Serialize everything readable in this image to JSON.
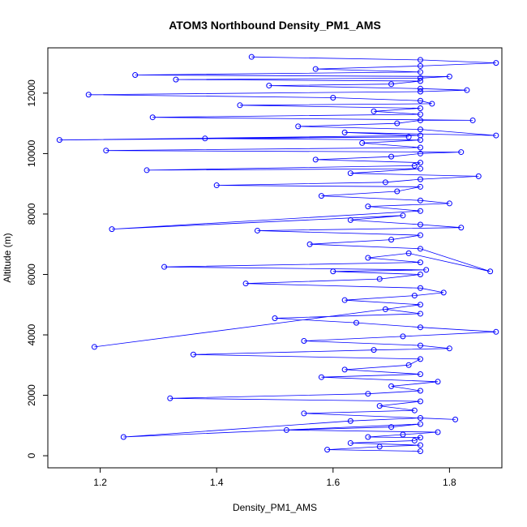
{
  "chart_data": {
    "type": "scatter",
    "title": "ATOM3 Northbound Density_PM1_AMS",
    "xlabel": "Density_PM1_AMS",
    "ylabel": "Altitude (m)",
    "xlim": [
      1.11,
      1.89
    ],
    "ylim": [
      -400,
      13500
    ],
    "x_ticks": [
      1.2,
      1.4,
      1.6,
      1.8
    ],
    "y_ticks": [
      0,
      2000,
      4000,
      6000,
      8000,
      10000,
      12000
    ],
    "grid": false,
    "marker": "open-circle",
    "connect_points": true,
    "color": "#0000ff",
    "series": [
      {
        "x": [
          1.75,
          1.59,
          1.68,
          1.75,
          1.63,
          1.74,
          1.75,
          1.66,
          1.72,
          1.78,
          1.52,
          1.7,
          1.75,
          1.24,
          1.63,
          1.75,
          1.81,
          1.55,
          1.74,
          1.68,
          1.75,
          1.32,
          1.66,
          1.75,
          1.7,
          1.78,
          1.58,
          1.75,
          1.62,
          1.73,
          1.75,
          1.36,
          1.67,
          1.8,
          1.75,
          1.55,
          1.72,
          1.88,
          1.75,
          1.64,
          1.5,
          1.75,
          1.69,
          1.19,
          1.75,
          1.62,
          1.74,
          1.79,
          1.75,
          1.45,
          1.68,
          1.75,
          1.6,
          1.76,
          1.31,
          1.75,
          1.66,
          1.73,
          1.87,
          1.75,
          1.56,
          1.7,
          1.75,
          1.47,
          1.82,
          1.75,
          1.63,
          1.72,
          1.22,
          1.75,
          1.66,
          1.8,
          1.75,
          1.58,
          1.71,
          1.75,
          1.4,
          1.69,
          1.75,
          1.85,
          1.63,
          1.75,
          1.28,
          1.74,
          1.75,
          1.57,
          1.7,
          1.75,
          1.82,
          1.21,
          1.75,
          1.65,
          1.75,
          1.38,
          1.73,
          1.13,
          1.75,
          1.62,
          1.88,
          1.75,
          1.54,
          1.71,
          1.75,
          1.84,
          1.29,
          1.75,
          1.67,
          1.75,
          1.44,
          1.77,
          1.75,
          1.6,
          1.18,
          1.75,
          1.83,
          1.75,
          1.49,
          1.7,
          1.75,
          1.33,
          1.75,
          1.8,
          1.26,
          1.75,
          1.57,
          1.75,
          1.88,
          1.75,
          1.46
        ],
        "y": [
          150,
          200,
          300,
          350,
          420,
          500,
          600,
          620,
          700,
          780,
          850,
          950,
          1050,
          620,
          1150,
          1250,
          1200,
          1400,
          1500,
          1650,
          1800,
          1900,
          2050,
          2150,
          2300,
          2450,
          2600,
          2700,
          2850,
          3000,
          3200,
          3350,
          3500,
          3550,
          3650,
          3800,
          3950,
          4100,
          4250,
          4400,
          4550,
          4700,
          4850,
          3600,
          5000,
          5150,
          5300,
          5400,
          5550,
          5700,
          5850,
          6000,
          6100,
          6150,
          6250,
          6400,
          6550,
          6700,
          6100,
          6850,
          7000,
          7150,
          7300,
          7450,
          7550,
          7650,
          7800,
          7950,
          7500,
          8100,
          8250,
          8350,
          8450,
          8600,
          8750,
          8900,
          8950,
          9050,
          9150,
          9250,
          9350,
          9500,
          9450,
          9600,
          9700,
          9800,
          9900,
          10000,
          10050,
          10100,
          10200,
          10350,
          10450,
          10500,
          10550,
          10450,
          10600,
          10700,
          10600,
          10800,
          10900,
          11000,
          11100,
          11100,
          11200,
          11300,
          11400,
          11500,
          11600,
          11650,
          11750,
          11850,
          11950,
          12050,
          12100,
          12150,
          12250,
          12300,
          12400,
          12450,
          12500,
          12550,
          12600,
          12700,
          12800,
          12900,
          13000,
          13100,
          13200
        ]
      }
    ]
  }
}
